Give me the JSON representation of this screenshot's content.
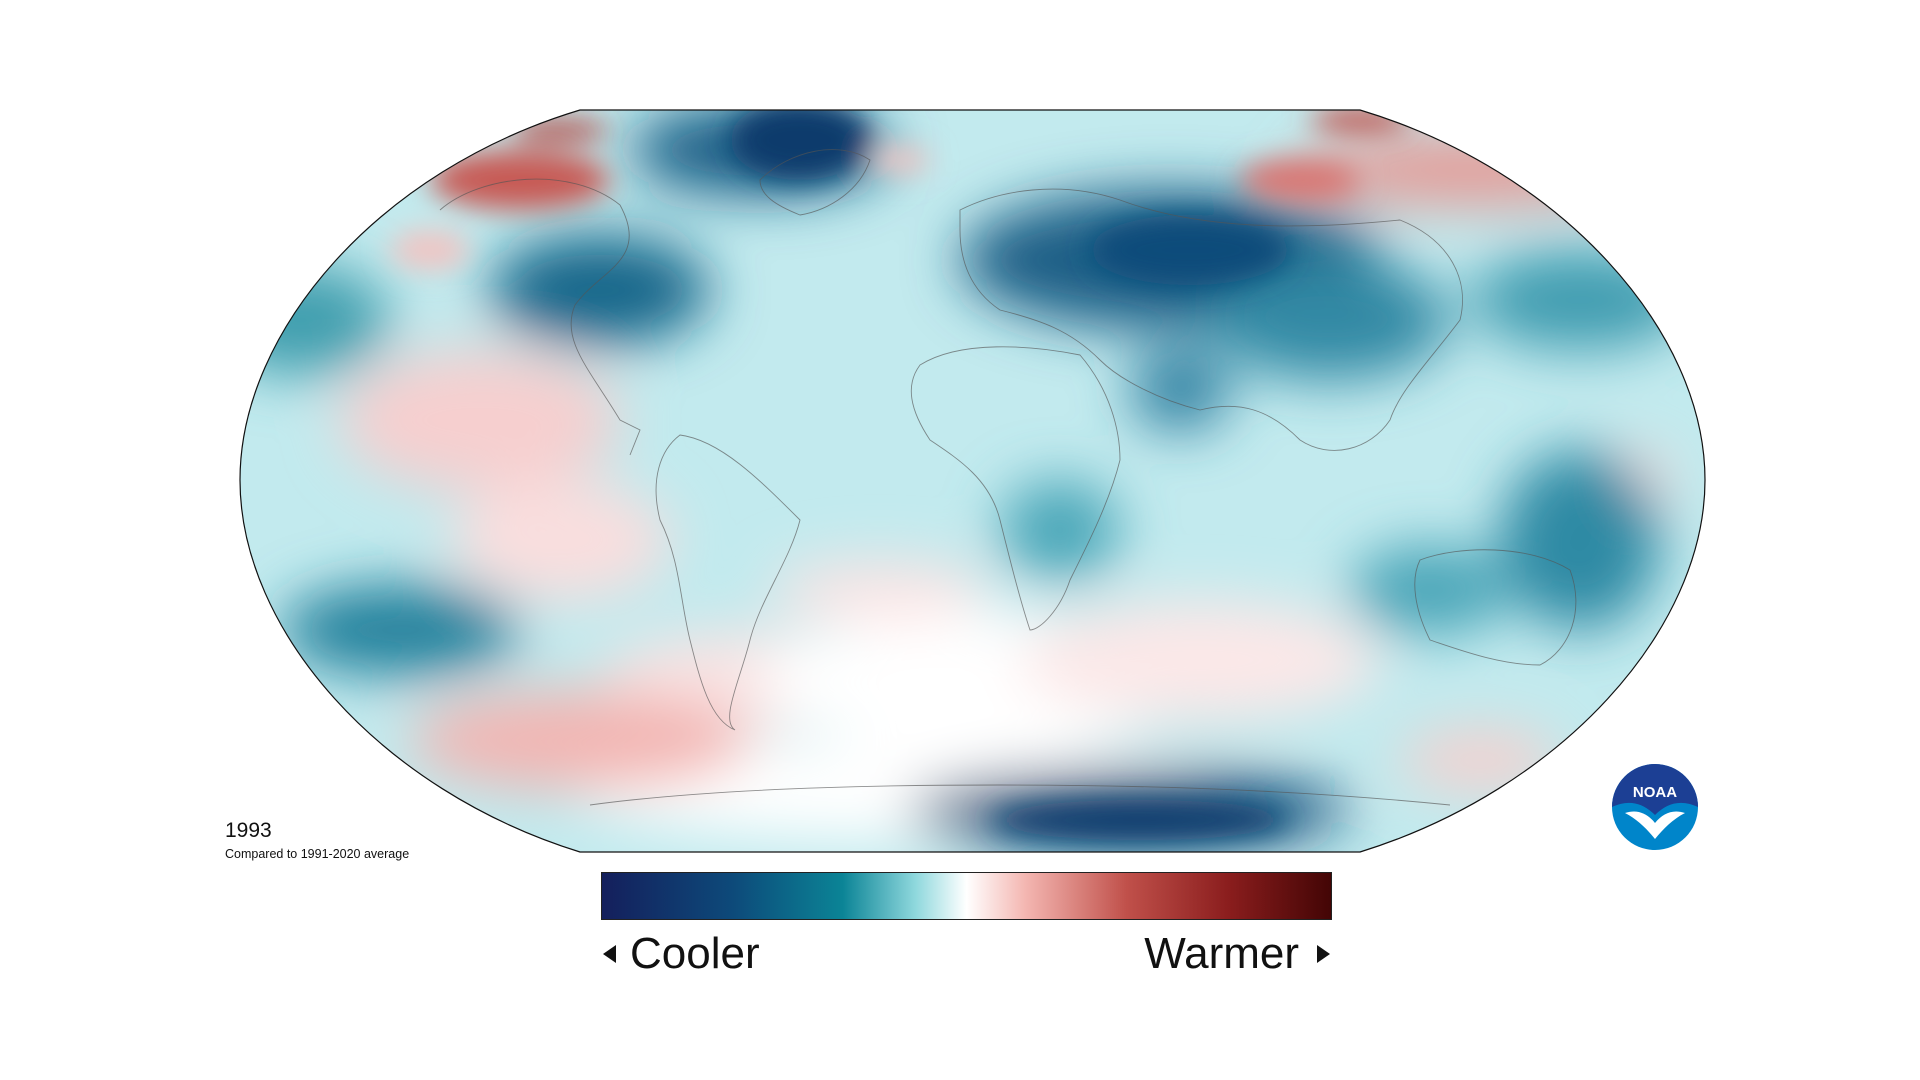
{
  "map": {
    "projection": "Robinson",
    "year": "1993",
    "subtitle": "Compared to 1991-2020 average"
  },
  "legend": {
    "cooler_label": "Cooler",
    "warmer_label": "Warmer",
    "colors": [
      "#141f5c",
      "#0b6e86",
      "#8fd8dd",
      "#ffffff",
      "#f2aaa6",
      "#b23a34",
      "#430505"
    ]
  },
  "logo": {
    "text": "NOAA",
    "colors": [
      "#1c3f94",
      "#0085ca",
      "#ffffff"
    ]
  }
}
